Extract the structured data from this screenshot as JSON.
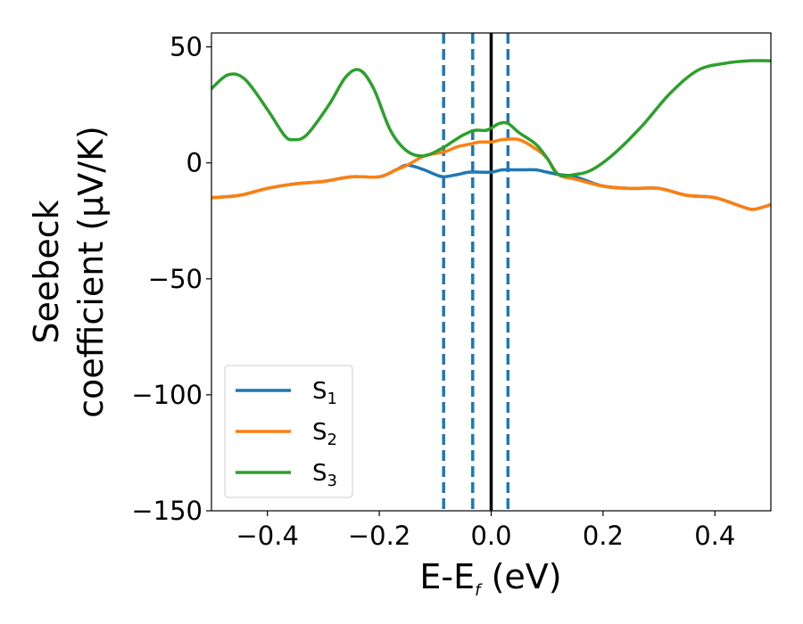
{
  "chart_data": {
    "type": "line",
    "xlabel": "E-E",
    "xlabel_sub": "f",
    "xlabel_unit": " (eV)",
    "ylabel_line1": "Seebeck",
    "ylabel_line2": "coefficient  (μV/K)",
    "xlim": [
      -0.5,
      0.5
    ],
    "ylim": [
      -150,
      56
    ],
    "xticks": [
      -0.4,
      -0.2,
      0.0,
      0.2,
      0.4
    ],
    "xtick_labels": [
      "−0.4",
      "−0.2",
      "0.0",
      "0.2",
      "0.4"
    ],
    "yticks": [
      -150,
      -100,
      -50,
      0,
      50
    ],
    "ytick_labels": [
      "−150",
      "−100",
      "−50",
      "0",
      "50"
    ],
    "vertical_lines": [
      {
        "x": -0.085,
        "style": "dashed",
        "color": "#1f77b4"
      },
      {
        "x": -0.033,
        "style": "dashed",
        "color": "#1f77b4"
      },
      {
        "x": 0.0,
        "style": "solid",
        "color": "#000000"
      },
      {
        "x": 0.03,
        "style": "dashed",
        "color": "#1f77b4"
      }
    ],
    "legend_position": "lower-left",
    "series": [
      {
        "name": "S",
        "sub": "1",
        "color": "#1f77b4",
        "x": [
          -0.5,
          -0.45,
          -0.4,
          -0.35,
          -0.3,
          -0.25,
          -0.2,
          -0.17,
          -0.15,
          -0.12,
          -0.1,
          -0.085,
          -0.06,
          -0.04,
          -0.02,
          0.0,
          0.02,
          0.04,
          0.06,
          0.08,
          0.1,
          0.12,
          0.15,
          0.2,
          0.25,
          0.3,
          0.35,
          0.4,
          0.45,
          0.47,
          0.5
        ],
        "y": [
          -15,
          -14,
          -11,
          -9,
          -8,
          -6,
          -6,
          -3,
          -1,
          -3,
          -5,
          -6,
          -5,
          -4,
          -4,
          -4,
          -3,
          -3,
          -3,
          -3,
          -4,
          -5,
          -6,
          -10,
          -11,
          -11,
          -14,
          -15,
          -19,
          -20,
          -18
        ]
      },
      {
        "name": "S",
        "sub": "2",
        "color": "#ff7f0e",
        "x": [
          -0.5,
          -0.45,
          -0.4,
          -0.35,
          -0.3,
          -0.25,
          -0.2,
          -0.17,
          -0.15,
          -0.12,
          -0.1,
          -0.08,
          -0.06,
          -0.04,
          -0.02,
          0.0,
          0.02,
          0.05,
          0.08,
          0.1,
          0.12,
          0.15,
          0.2,
          0.25,
          0.3,
          0.35,
          0.4,
          0.45,
          0.47,
          0.5
        ],
        "y": [
          -15,
          -14,
          -11,
          -9,
          -8,
          -6,
          -6,
          -3,
          -1,
          3,
          4,
          5,
          7,
          8,
          9,
          9,
          10,
          10,
          6,
          2,
          -5,
          -7,
          -10,
          -11,
          -11,
          -14,
          -15,
          -19,
          -20,
          -18
        ]
      },
      {
        "name": "S",
        "sub": "3",
        "color": "#2ca02c",
        "x": [
          -0.5,
          -0.47,
          -0.44,
          -0.4,
          -0.37,
          -0.355,
          -0.33,
          -0.29,
          -0.26,
          -0.235,
          -0.21,
          -0.18,
          -0.15,
          -0.12,
          -0.09,
          -0.07,
          -0.05,
          -0.03,
          -0.01,
          0.0,
          0.015,
          0.03,
          0.05,
          0.08,
          0.1,
          0.12,
          0.15,
          0.18,
          0.22,
          0.27,
          0.32,
          0.37,
          0.42,
          0.46,
          0.5
        ],
        "y": [
          32,
          38,
          36,
          23,
          12,
          10,
          12,
          25,
          37,
          40,
          32,
          14,
          5,
          3,
          6,
          9,
          12,
          14,
          14,
          15,
          17,
          17,
          13,
          8,
          2,
          -5,
          -5,
          -3,
          4,
          16,
          30,
          40,
          43,
          44,
          44
        ]
      }
    ]
  }
}
